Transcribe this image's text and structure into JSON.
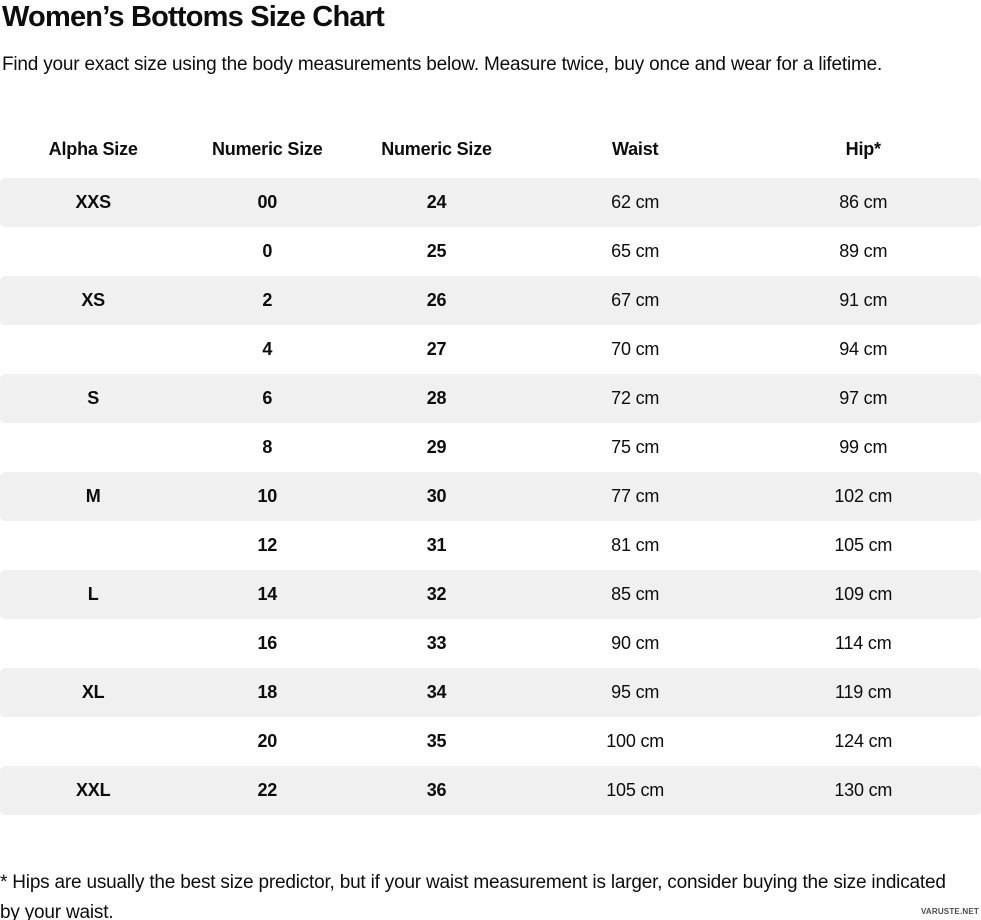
{
  "page": {
    "title": "Women’s Bottoms Size Chart",
    "subtitle": "Find your exact size using the body measurements below. Measure twice, buy once and wear for a lifetime.",
    "footnote": "* Hips are usually the best size predictor, but if your waist measurement is larger, consider buying the size indicated by your waist.",
    "watermark": "VARUSTE.NET"
  },
  "colors": {
    "text": "#0d0d0d",
    "row_stripe": "#f0f0f0",
    "background": "#ffffff",
    "watermark": "#4d4d4d"
  },
  "chart_data": {
    "type": "table",
    "title": "Women’s Bottoms Size Chart",
    "columns": [
      "Alpha Size",
      "Numeric Size",
      "Numeric Size",
      "Waist",
      "Hip*"
    ],
    "bold_columns": [
      0,
      1,
      2
    ],
    "rows": [
      [
        "XXS",
        "00",
        "24",
        "62 cm",
        "86 cm"
      ],
      [
        "",
        "0",
        "25",
        "65 cm",
        "89 cm"
      ],
      [
        "XS",
        "2",
        "26",
        "67 cm",
        "91 cm"
      ],
      [
        "",
        "4",
        "27",
        "70 cm",
        "94 cm"
      ],
      [
        "S",
        "6",
        "28",
        "72 cm",
        "97 cm"
      ],
      [
        "",
        "8",
        "29",
        "75 cm",
        "99 cm"
      ],
      [
        "M",
        "10",
        "30",
        "77 cm",
        "102 cm"
      ],
      [
        "",
        "12",
        "31",
        "81 cm",
        "105 cm"
      ],
      [
        "L",
        "14",
        "32",
        "85 cm",
        "109 cm"
      ],
      [
        "",
        "16",
        "33",
        "90 cm",
        "114 cm"
      ],
      [
        "XL",
        "18",
        "34",
        "95 cm",
        "119 cm"
      ],
      [
        "",
        "20",
        "35",
        "100 cm",
        "124 cm"
      ],
      [
        "XXL",
        "22",
        "36",
        "105 cm",
        "130 cm"
      ]
    ]
  }
}
